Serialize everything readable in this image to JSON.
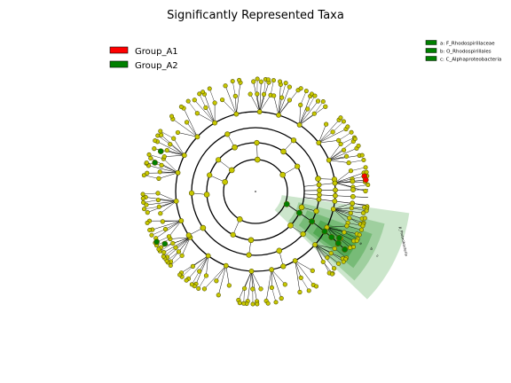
{
  "title": "Significantly Represented Taxa",
  "legend_groups": [
    {
      "label": "Group_A1",
      "color": "#ff0000"
    },
    {
      "label": "Group_A2",
      "color": "#008000"
    }
  ],
  "legend_taxa": [
    {
      "label": "a: F_Rhodospirillaceae",
      "color": "#008000"
    },
    {
      "label": "b: O_Rhodospirillales",
      "color": "#008000"
    },
    {
      "label": "c: C_Alphaproteobacteria",
      "color": "#008000"
    }
  ],
  "clade_labels": [
    "a",
    "b",
    "c",
    "p_Proteobacteria"
  ],
  "colors": {
    "node_default": "#c8c800",
    "node_stroke": "#555500",
    "group_a1": "#ff0000",
    "group_a2": "#008000",
    "highlight_fill": "#008000",
    "ring": "#000000",
    "branch": "#000000"
  },
  "chart_data": {
    "type": "cladogram",
    "title": "Significantly Represented Taxa",
    "levels": [
      "phylum",
      "class",
      "order",
      "family",
      "genus"
    ],
    "highlighted_clades": [
      {
        "letter": "a",
        "taxon": "F_Rhodospirillaceae",
        "group": "Group_A2"
      },
      {
        "letter": "b",
        "taxon": "O_Rhodospirillales",
        "group": "Group_A2"
      },
      {
        "letter": "c",
        "taxon": "C_Alphaproteobacteria",
        "group": "Group_A2"
      },
      {
        "letter": "",
        "taxon": "p_Proteobacteria",
        "group": "Group_A2"
      }
    ],
    "group_a1_nodes": 2,
    "group_a2_nodes": 10
  }
}
